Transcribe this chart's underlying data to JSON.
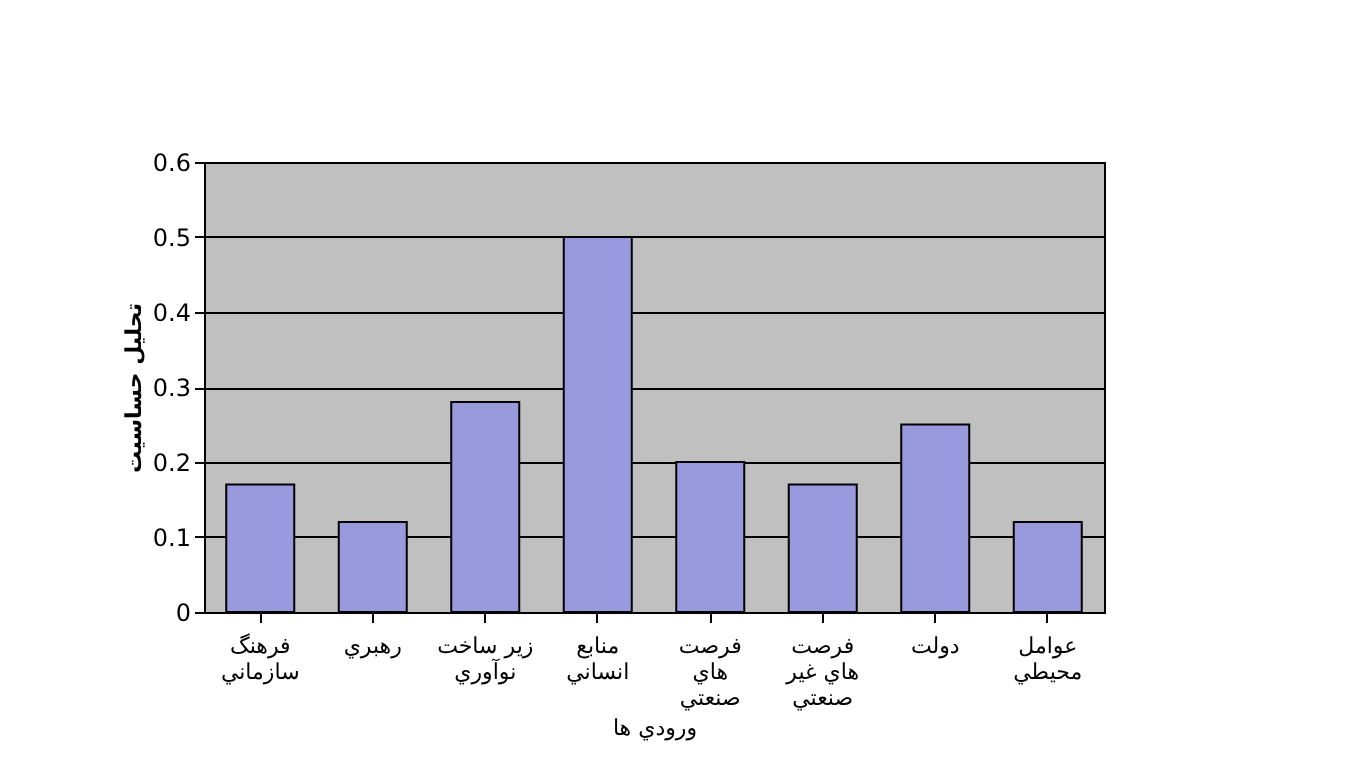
{
  "chart_data": {
    "type": "bar",
    "xlabel": "ورودي ها",
    "ylabel": "تحليل حساسيت",
    "categories": [
      "فرهنگ\nسازماني",
      "رهبري",
      "زير ساخت\nنوآوري",
      "منابع\nانساني",
      "فرصت\nهاي\nصنعتي",
      "فرصت\nهاي غير\nصنعتي",
      "دولت",
      "عوامل\nمحيطي"
    ],
    "values": [
      0.17,
      0.12,
      0.28,
      0.5,
      0.2,
      0.17,
      0.25,
      0.12
    ],
    "color": "#9999dd",
    "ylim": [
      0,
      0.6
    ],
    "yticks": [
      0,
      0.1,
      0.2,
      0.3,
      0.4,
      0.5,
      0.6
    ],
    "grid": "y"
  }
}
